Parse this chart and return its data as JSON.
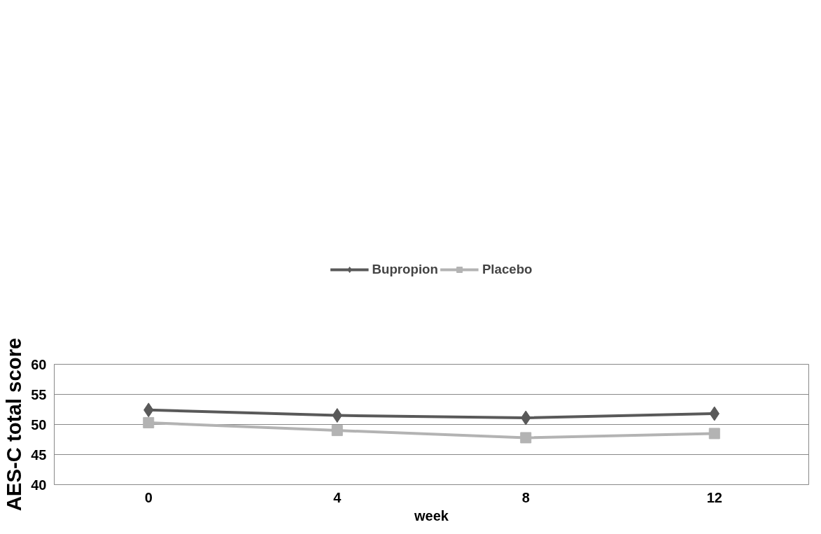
{
  "chart_data": {
    "type": "line",
    "xlabel": "week",
    "ylabel": "AES-C total score",
    "categories": [
      "0",
      "4",
      "8",
      "12"
    ],
    "series": [
      {
        "name": "Bupropion",
        "color": "#595959",
        "marker": "diamond",
        "values": [
          52.4,
          51.5,
          51.1,
          51.8
        ]
      },
      {
        "name": "Placebo",
        "color": "#b3b3b3",
        "marker": "square",
        "values": [
          50.3,
          49.0,
          47.8,
          48.5
        ]
      }
    ],
    "ylim": [
      40,
      60
    ],
    "yticks": [
      40,
      45,
      50,
      55,
      60
    ],
    "grid": "y",
    "legend": "top",
    "line_style": "solid"
  }
}
